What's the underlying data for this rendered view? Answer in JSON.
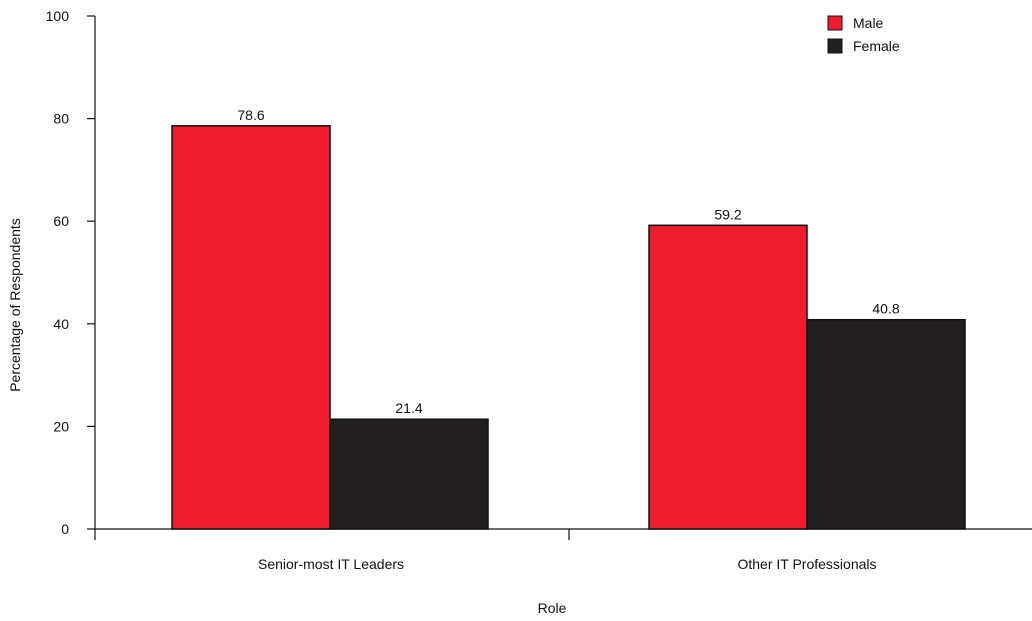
{
  "chart_data": {
    "type": "bar",
    "title": "",
    "xlabel": "Role",
    "ylabel": "Percentage of Respondents",
    "categories": [
      "Senior-most IT Leaders",
      "Other IT Professionals"
    ],
    "series": [
      {
        "name": "Male",
        "values": [
          78.6,
          59.2
        ],
        "value_labels": [
          "78.6",
          "59.2"
        ],
        "color": "#ed1c2e"
      },
      {
        "name": "Female",
        "values": [
          21.4,
          40.8
        ],
        "value_labels": [
          "21.4",
          "40.8"
        ],
        "color": "#231f20"
      }
    ],
    "ylim": [
      0,
      100
    ],
    "yticks": [
      0,
      20,
      40,
      60,
      80,
      100
    ],
    "ytick_labels": [
      "0",
      "20",
      "40",
      "60",
      "80",
      "100"
    ],
    "grid": false,
    "legend_position": "top-right"
  }
}
